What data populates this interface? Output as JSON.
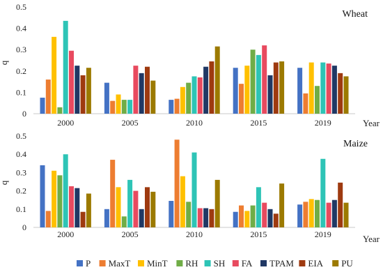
{
  "series_colors": {
    "P": "#4472C4",
    "MaxT": "#ED7D31",
    "MinT": "#FFC000",
    "RH": "#70AD47",
    "SH": "#2EC4B6",
    "FA": "#E84A5F",
    "TPAM": "#203864",
    "EIA": "#9E3A10",
    "PU": "#9C7A00"
  },
  "legend": {
    "items": [
      "P",
      "MaxT",
      "MinT",
      "RH",
      "SH",
      "FA",
      "TPAM",
      "EIA",
      "PU"
    ]
  },
  "chart_data": [
    {
      "type": "bar",
      "title": "Wheat",
      "ylabel": "q",
      "xlabel": "Year",
      "ylim": [
        0,
        0.5
      ],
      "yticks": [
        "0",
        "0.1",
        "0.2",
        "0.3",
        "0.4",
        "0.5"
      ],
      "categories": [
        "2000",
        "2005",
        "2010",
        "2015",
        "2019"
      ],
      "series": [
        {
          "name": "P",
          "values": [
            0.075,
            0.145,
            0.065,
            0.215,
            0.215
          ]
        },
        {
          "name": "MaxT",
          "values": [
            0.16,
            0.06,
            0.07,
            0.14,
            0.095
          ]
        },
        {
          "name": "MinT",
          "values": [
            0.36,
            0.09,
            0.125,
            0.225,
            0.24
          ]
        },
        {
          "name": "RH",
          "values": [
            0.03,
            0.065,
            0.145,
            0.3,
            0.13
          ]
        },
        {
          "name": "SH",
          "values": [
            0.435,
            0.065,
            0.175,
            0.275,
            0.24
          ]
        },
        {
          "name": "FA",
          "values": [
            0.295,
            0.225,
            0.17,
            0.32,
            0.235
          ]
        },
        {
          "name": "TPAM",
          "values": [
            0.225,
            0.19,
            0.22,
            0.18,
            0.225
          ]
        },
        {
          "name": "EIA",
          "values": [
            0.18,
            0.22,
            0.245,
            0.24,
            0.19
          ]
        },
        {
          "name": "PU",
          "values": [
            0.215,
            0.155,
            0.315,
            0.245,
            0.175
          ]
        }
      ],
      "legend_position": "none",
      "grid": false
    },
    {
      "type": "bar",
      "title": "Maize",
      "ylabel": "q",
      "xlabel": "Year",
      "ylim": [
        0,
        0.5
      ],
      "yticks": [
        "0",
        "0.1",
        "0.2",
        "0.3",
        "0.4",
        "0.5"
      ],
      "categories": [
        "2000",
        "2005",
        "2010",
        "2015",
        "2019"
      ],
      "series": [
        {
          "name": "P",
          "values": [
            0.34,
            0.1,
            0.145,
            0.085,
            0.125
          ]
        },
        {
          "name": "MaxT",
          "values": [
            0.09,
            0.37,
            0.48,
            0.12,
            0.14
          ]
        },
        {
          "name": "MinT",
          "values": [
            0.31,
            0.22,
            0.28,
            0.09,
            0.155
          ]
        },
        {
          "name": "RH",
          "values": [
            0.285,
            0.06,
            0.14,
            0.12,
            0.15
          ]
        },
        {
          "name": "SH",
          "values": [
            0.4,
            0.26,
            0.41,
            0.22,
            0.375
          ]
        },
        {
          "name": "FA",
          "values": [
            0.225,
            0.2,
            0.105,
            0.135,
            0.135
          ]
        },
        {
          "name": "TPAM",
          "values": [
            0.215,
            0.1,
            0.105,
            0.1,
            0.15
          ]
        },
        {
          "name": "EIA",
          "values": [
            0.085,
            0.22,
            0.1,
            0.075,
            0.245
          ]
        },
        {
          "name": "PU",
          "values": [
            0.185,
            0.195,
            0.26,
            0.24,
            0.135
          ]
        }
      ],
      "legend_position": "bottom",
      "grid": false
    }
  ]
}
